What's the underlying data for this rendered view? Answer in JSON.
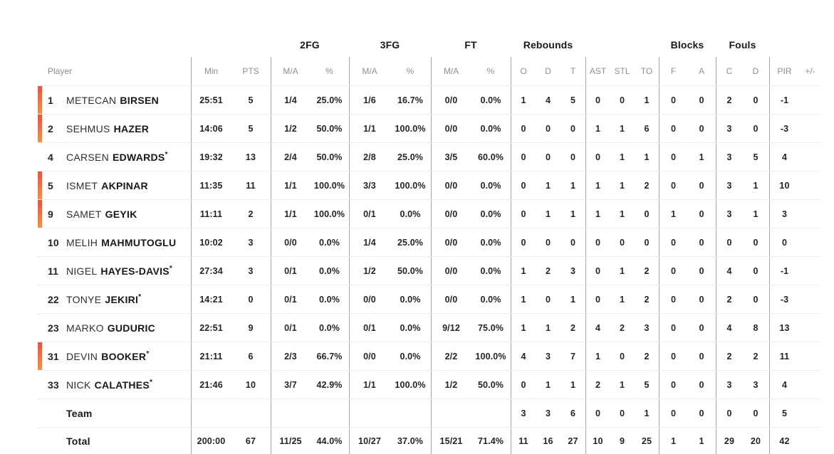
{
  "colors": {
    "accent_top": "#f2503e",
    "accent_bottom": "#f8923e",
    "header_gray": "#8b9096",
    "text_dark": "#17181a"
  },
  "group_headers": {
    "fg2": "2FG",
    "fg3": "3FG",
    "ft": "FT",
    "rebounds": "Rebounds",
    "blocks": "Blocks",
    "fouls": "Fouls"
  },
  "columns": {
    "player": "Player",
    "min": "Min",
    "pts": "PTS",
    "ma": "M/A",
    "pct": "%",
    "o": "O",
    "d": "D",
    "t": "T",
    "ast": "AST",
    "stl": "STL",
    "to": "TO",
    "f": "F",
    "a": "A",
    "c": "C",
    "pir": "PIR",
    "pm": "+/-"
  },
  "starter_mark": "*",
  "rows": [
    {
      "type": "player",
      "num": "1",
      "first": "METECAN",
      "last": "BIRSEN",
      "starter": false,
      "on_court": true,
      "min": "25:51",
      "pts": "5",
      "fg2ma": "1/4",
      "fg2pct": "25.0%",
      "fg3ma": "1/6",
      "fg3pct": "16.7%",
      "ftma": "0/0",
      "ftpct": "0.0%",
      "ro": "1",
      "rd": "4",
      "rt": "5",
      "ast": "0",
      "stl": "0",
      "to": "1",
      "bf": "0",
      "ba": "0",
      "fc": "2",
      "fd": "0",
      "pir": "-1",
      "pm": ""
    },
    {
      "type": "player",
      "num": "2",
      "first": "SEHMUS",
      "last": "HAZER",
      "starter": false,
      "on_court": true,
      "min": "14:06",
      "pts": "5",
      "fg2ma": "1/2",
      "fg2pct": "50.0%",
      "fg3ma": "1/1",
      "fg3pct": "100.0%",
      "ftma": "0/0",
      "ftpct": "0.0%",
      "ro": "0",
      "rd": "0",
      "rt": "0",
      "ast": "1",
      "stl": "1",
      "to": "6",
      "bf": "0",
      "ba": "0",
      "fc": "3",
      "fd": "0",
      "pir": "-3",
      "pm": ""
    },
    {
      "type": "player",
      "num": "4",
      "first": "CARSEN",
      "last": "EDWARDS",
      "starter": true,
      "on_court": false,
      "min": "19:32",
      "pts": "13",
      "fg2ma": "2/4",
      "fg2pct": "50.0%",
      "fg3ma": "2/8",
      "fg3pct": "25.0%",
      "ftma": "3/5",
      "ftpct": "60.0%",
      "ro": "0",
      "rd": "0",
      "rt": "0",
      "ast": "0",
      "stl": "1",
      "to": "1",
      "bf": "0",
      "ba": "1",
      "fc": "3",
      "fd": "5",
      "pir": "4",
      "pm": ""
    },
    {
      "type": "player",
      "num": "5",
      "first": "ISMET",
      "last": "AKPINAR",
      "starter": false,
      "on_court": true,
      "min": "11:35",
      "pts": "11",
      "fg2ma": "1/1",
      "fg2pct": "100.0%",
      "fg3ma": "3/3",
      "fg3pct": "100.0%",
      "ftma": "0/0",
      "ftpct": "0.0%",
      "ro": "0",
      "rd": "1",
      "rt": "1",
      "ast": "1",
      "stl": "1",
      "to": "2",
      "bf": "0",
      "ba": "0",
      "fc": "3",
      "fd": "1",
      "pir": "10",
      "pm": ""
    },
    {
      "type": "player",
      "num": "9",
      "first": "SAMET",
      "last": "GEYIK",
      "starter": false,
      "on_court": true,
      "min": "11:11",
      "pts": "2",
      "fg2ma": "1/1",
      "fg2pct": "100.0%",
      "fg3ma": "0/1",
      "fg3pct": "0.0%",
      "ftma": "0/0",
      "ftpct": "0.0%",
      "ro": "0",
      "rd": "1",
      "rt": "1",
      "ast": "1",
      "stl": "1",
      "to": "0",
      "bf": "1",
      "ba": "0",
      "fc": "3",
      "fd": "1",
      "pir": "3",
      "pm": ""
    },
    {
      "type": "player",
      "num": "10",
      "first": "MELIH",
      "last": "MAHMUTOGLU",
      "starter": false,
      "on_court": false,
      "min": "10:02",
      "pts": "3",
      "fg2ma": "0/0",
      "fg2pct": "0.0%",
      "fg3ma": "1/4",
      "fg3pct": "25.0%",
      "ftma": "0/0",
      "ftpct": "0.0%",
      "ro": "0",
      "rd": "0",
      "rt": "0",
      "ast": "0",
      "stl": "0",
      "to": "0",
      "bf": "0",
      "ba": "0",
      "fc": "0",
      "fd": "0",
      "pir": "0",
      "pm": ""
    },
    {
      "type": "player",
      "num": "11",
      "first": "NIGEL",
      "last": "HAYES-DAVIS",
      "starter": true,
      "on_court": false,
      "min": "27:34",
      "pts": "3",
      "fg2ma": "0/1",
      "fg2pct": "0.0%",
      "fg3ma": "1/2",
      "fg3pct": "50.0%",
      "ftma": "0/0",
      "ftpct": "0.0%",
      "ro": "1",
      "rd": "2",
      "rt": "3",
      "ast": "0",
      "stl": "1",
      "to": "2",
      "bf": "0",
      "ba": "0",
      "fc": "4",
      "fd": "0",
      "pir": "-1",
      "pm": ""
    },
    {
      "type": "player",
      "num": "22",
      "first": "TONYE",
      "last": "JEKIRI",
      "starter": true,
      "on_court": false,
      "min": "14:21",
      "pts": "0",
      "fg2ma": "0/1",
      "fg2pct": "0.0%",
      "fg3ma": "0/0",
      "fg3pct": "0.0%",
      "ftma": "0/0",
      "ftpct": "0.0%",
      "ro": "1",
      "rd": "0",
      "rt": "1",
      "ast": "0",
      "stl": "1",
      "to": "2",
      "bf": "0",
      "ba": "0",
      "fc": "2",
      "fd": "0",
      "pir": "-3",
      "pm": ""
    },
    {
      "type": "player",
      "num": "23",
      "first": "MARKO",
      "last": "GUDURIC",
      "starter": false,
      "on_court": false,
      "min": "22:51",
      "pts": "9",
      "fg2ma": "0/1",
      "fg2pct": "0.0%",
      "fg3ma": "0/1",
      "fg3pct": "0.0%",
      "ftma": "9/12",
      "ftpct": "75.0%",
      "ro": "1",
      "rd": "1",
      "rt": "2",
      "ast": "4",
      "stl": "2",
      "to": "3",
      "bf": "0",
      "ba": "0",
      "fc": "4",
      "fd": "8",
      "pir": "13",
      "pm": ""
    },
    {
      "type": "player",
      "num": "31",
      "first": "DEVIN",
      "last": "BOOKER",
      "starter": true,
      "on_court": true,
      "min": "21:11",
      "pts": "6",
      "fg2ma": "2/3",
      "fg2pct": "66.7%",
      "fg3ma": "0/0",
      "fg3pct": "0.0%",
      "ftma": "2/2",
      "ftpct": "100.0%",
      "ro": "4",
      "rd": "3",
      "rt": "7",
      "ast": "1",
      "stl": "0",
      "to": "2",
      "bf": "0",
      "ba": "0",
      "fc": "2",
      "fd": "2",
      "pir": "11",
      "pm": ""
    },
    {
      "type": "player",
      "num": "33",
      "first": "NICK",
      "last": "CALATHES",
      "starter": true,
      "on_court": false,
      "min": "21:46",
      "pts": "10",
      "fg2ma": "3/7",
      "fg2pct": "42.9%",
      "fg3ma": "1/1",
      "fg3pct": "100.0%",
      "ftma": "1/2",
      "ftpct": "50.0%",
      "ro": "0",
      "rd": "1",
      "rt": "1",
      "ast": "2",
      "stl": "1",
      "to": "5",
      "bf": "0",
      "ba": "0",
      "fc": "3",
      "fd": "3",
      "pir": "4",
      "pm": ""
    },
    {
      "type": "team",
      "num": "",
      "first": "",
      "last": "Team",
      "starter": false,
      "on_court": false,
      "min": "",
      "pts": "",
      "fg2ma": "",
      "fg2pct": "",
      "fg3ma": "",
      "fg3pct": "",
      "ftma": "",
      "ftpct": "",
      "ro": "3",
      "rd": "3",
      "rt": "6",
      "ast": "0",
      "stl": "0",
      "to": "1",
      "bf": "0",
      "ba": "0",
      "fc": "0",
      "fd": "0",
      "pir": "5",
      "pm": ""
    },
    {
      "type": "total",
      "num": "",
      "first": "",
      "last": "Total",
      "starter": false,
      "on_court": false,
      "min": "200:00",
      "pts": "67",
      "fg2ma": "11/25",
      "fg2pct": "44.0%",
      "fg3ma": "10/27",
      "fg3pct": "37.0%",
      "ftma": "15/21",
      "ftpct": "71.4%",
      "ro": "11",
      "rd": "16",
      "rt": "27",
      "ast": "10",
      "stl": "9",
      "to": "25",
      "bf": "1",
      "ba": "1",
      "fc": "29",
      "fd": "20",
      "pir": "42",
      "pm": ""
    }
  ]
}
